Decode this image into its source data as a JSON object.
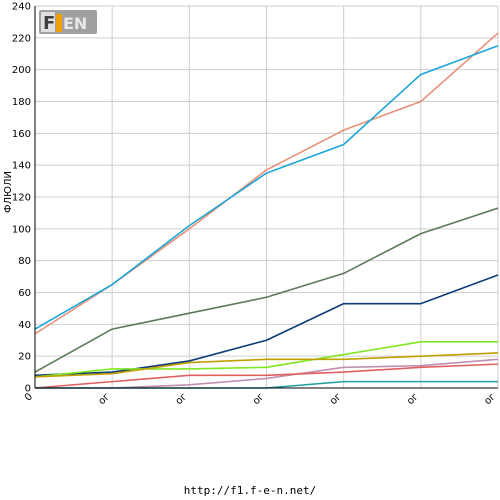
{
  "logo": {
    "text": "F1EN"
  },
  "footer": {
    "url": "http://f1.f-e-n.net/"
  },
  "colors": {
    "grid": "#cfcfcf",
    "axis": "#000000",
    "logo_bg": "#a0a0a0",
    "logo_accent": "#f0a000"
  },
  "chart_data": {
    "type": "line",
    "title": "",
    "xlabel": "",
    "ylabel": "ФЛЮЛИ",
    "ylim": [
      0,
      240
    ],
    "yticks": [
      0,
      20,
      40,
      60,
      80,
      100,
      120,
      140,
      160,
      180,
      200,
      220,
      240
    ],
    "x": [
      0,
      1,
      2,
      3,
      4,
      5,
      6
    ],
    "x_tick_labels": [
      "0",
      "ог",
      "ог",
      "ог",
      "ог",
      "ог",
      "ог"
    ],
    "grid": true,
    "legend": "none",
    "series": [
      {
        "color": "#e8907a",
        "values": [
          34,
          65,
          100,
          137,
          162,
          180,
          223
        ]
      },
      {
        "color": "#1aa6d8",
        "values": [
          37,
          65,
          102,
          135,
          153,
          197,
          215
        ]
      },
      {
        "color": "#5a7a5a",
        "values": [
          10,
          37,
          47,
          57,
          72,
          97,
          113
        ]
      },
      {
        "color": "#0e3c78",
        "values": [
          8,
          10,
          17,
          30,
          53,
          53,
          71
        ]
      },
      {
        "color": "#80e820",
        "values": [
          7,
          12,
          12,
          13,
          21,
          29,
          29
        ]
      },
      {
        "color": "#c0a000",
        "values": [
          7,
          9,
          16,
          18,
          18,
          20,
          22
        ]
      },
      {
        "color": "#c090b0",
        "values": [
          0,
          0,
          2,
          6,
          13,
          14,
          18
        ]
      },
      {
        "color": "#e06060",
        "values": [
          0,
          4,
          8,
          8,
          10,
          13,
          15
        ]
      },
      {
        "color": "#20a0a0",
        "values": [
          0,
          0,
          0,
          0,
          4,
          4,
          4
        ]
      }
    ]
  }
}
